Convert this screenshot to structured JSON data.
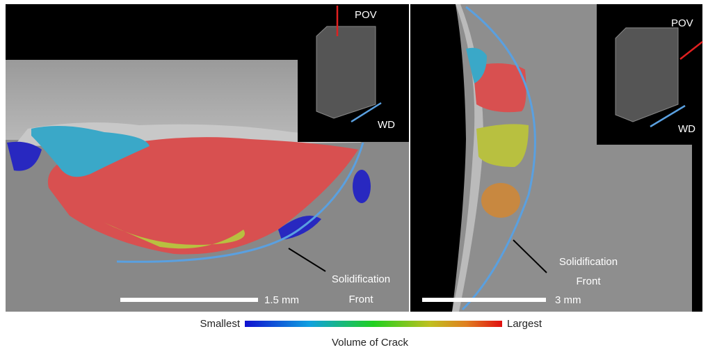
{
  "left_panel": {
    "pov_label": "POV",
    "wd_label": "WD",
    "annotation": [
      "Solidification",
      "Front"
    ],
    "scale_bar": "1.5 mm"
  },
  "right_panel": {
    "pov_label": "POV",
    "wd_label": "WD",
    "annotation": [
      "Solidification",
      "Front"
    ],
    "scale_bar": "3 mm"
  },
  "colorbar": {
    "min_label": "Smallest",
    "max_label": "Largest",
    "title": "Volume of Crack"
  }
}
